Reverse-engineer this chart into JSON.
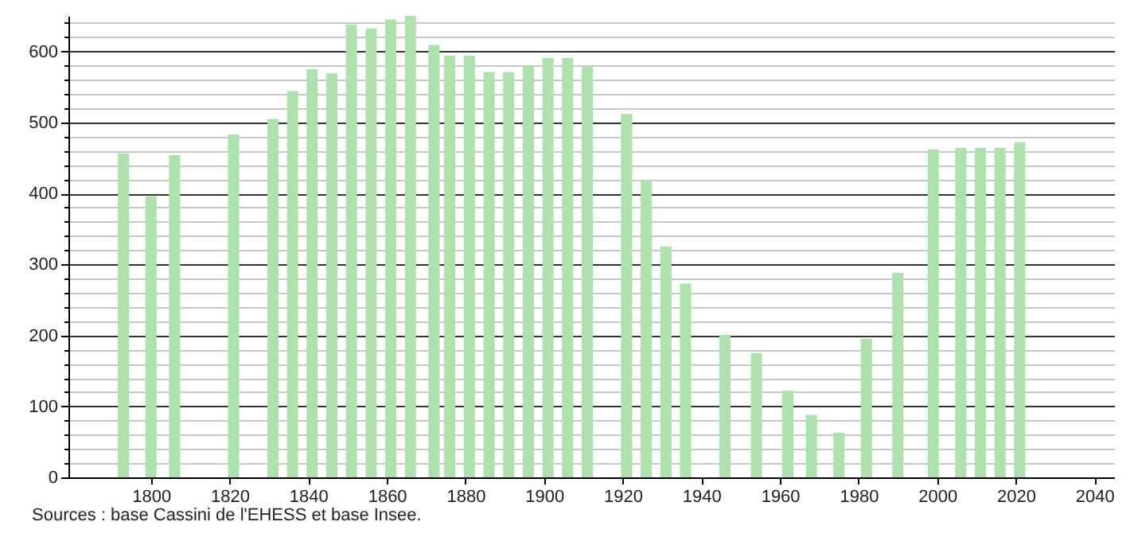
{
  "chart_data": {
    "type": "bar",
    "x": [
      1793,
      1800,
      1806,
      1821,
      1831,
      1836,
      1841,
      1846,
      1851,
      1856,
      1861,
      1866,
      1872,
      1876,
      1881,
      1886,
      1891,
      1896,
      1901,
      1906,
      1911,
      1921,
      1926,
      1931,
      1936,
      1946,
      1954,
      1962,
      1968,
      1975,
      1982,
      1990,
      1999,
      2006,
      2011,
      2016,
      2021
    ],
    "values": [
      456,
      396,
      454,
      483,
      505,
      544,
      575,
      569,
      638,
      632,
      645,
      650,
      609,
      594,
      594,
      571,
      571,
      580,
      591,
      591,
      578,
      512,
      418,
      325,
      273,
      201,
      175,
      122,
      88,
      63,
      195,
      288,
      462,
      464,
      464,
      464,
      472
    ],
    "color": "#ade2ad",
    "xlim": [
      1779,
      2045
    ],
    "xticks": [
      1800,
      1820,
      1840,
      1860,
      1880,
      1900,
      1920,
      1940,
      1960,
      1980,
      2000,
      2020,
      2040
    ],
    "ylim": [
      0,
      650
    ],
    "yticks": [
      0,
      {
        "value": 20,
        "label": null
      },
      {
        "value": 40,
        "label": null
      },
      {
        "value": 60,
        "label": null
      },
      {
        "value": 80,
        "label": null
      },
      100,
      {
        "value": 120,
        "label": null
      },
      {
        "value": 140,
        "label": null
      },
      {
        "value": 160,
        "label": null
      },
      {
        "value": 180,
        "label": null
      },
      200,
      {
        "value": 220,
        "label": null
      },
      {
        "value": 240,
        "label": null
      },
      {
        "value": 260,
        "label": null
      },
      {
        "value": 280,
        "label": null
      },
      300,
      {
        "value": 320,
        "label": null
      },
      {
        "value": 340,
        "label": null
      },
      {
        "value": 360,
        "label": null
      },
      {
        "value": 380,
        "label": null
      },
      400,
      {
        "value": 420,
        "label": null
      },
      {
        "value": 440,
        "label": null
      },
      {
        "value": 460,
        "label": null
      },
      {
        "value": 480,
        "label": null
      },
      500,
      {
        "value": 520,
        "label": null
      },
      {
        "value": 540,
        "label": null
      },
      {
        "value": 560,
        "label": null
      },
      {
        "value": 580,
        "label": null
      },
      600,
      {
        "value": 620,
        "label": null
      },
      {
        "value": 640,
        "label": null
      }
    ],
    "grid": "y",
    "annotations": [
      "Sources : base Cassini de l'EHESS et base Insee."
    ]
  }
}
